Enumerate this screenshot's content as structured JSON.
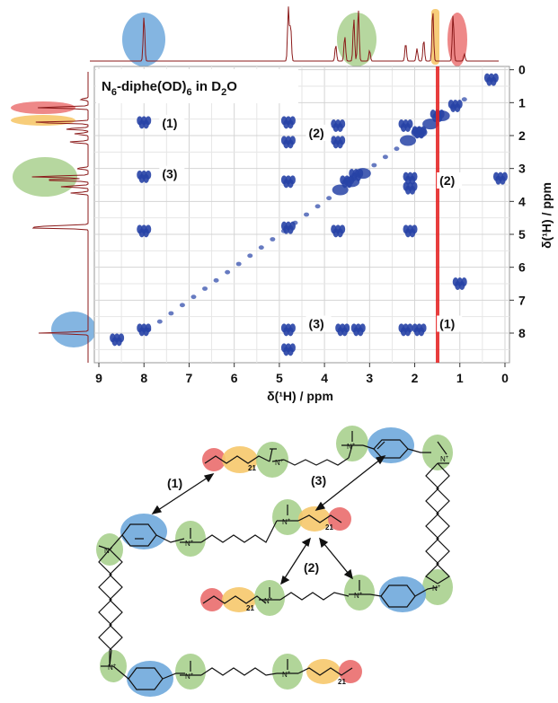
{
  "figure": {
    "title_main": "N",
    "title_sub1": "6",
    "title_mid": "-diphe(OD)",
    "title_sub2": "6",
    "title_in": " in D",
    "title_sub3": "2",
    "title_end": "O"
  },
  "chart_data": {
    "type": "2D-NMR",
    "x_ticks": [
      "9",
      "8",
      "7",
      "6",
      "5",
      "4",
      "3",
      "2",
      "1",
      "0"
    ],
    "y_ticks": [
      "0",
      "1",
      "2",
      "3",
      "4",
      "5",
      "6",
      "7",
      "8"
    ],
    "xlabel": "δ(¹H)  / ppm",
    "ylabel": "δ(¹H)  / ppm",
    "xlim": [
      9.1,
      -0.1
    ],
    "ylim": [
      -0.1,
      8.9
    ],
    "peak_labels": [
      {
        "text": "(1)",
        "x": 7.6,
        "y": 1.75
      },
      {
        "text": "(2)",
        "x": 4.35,
        "y": 2.05
      },
      {
        "text": "(3)",
        "x": 7.6,
        "y": 3.3
      },
      {
        "text": "(2)",
        "x": 1.45,
        "y": 3.5
      },
      {
        "text": "(3)",
        "x": 4.35,
        "y": 7.85
      },
      {
        "text": "(1)",
        "x": 1.45,
        "y": 7.85
      }
    ],
    "highlights": [
      {
        "x": 8.0,
        "color": "#6fa8dc"
      },
      {
        "x": 3.3,
        "color": "#a9d08e"
      },
      {
        "x": 1.6,
        "color": "#f6c86b"
      },
      {
        "x": 1.1,
        "color": "#ec7b7b"
      }
    ],
    "cross_peaks": [
      {
        "x": 8.0,
        "y": 1.6
      },
      {
        "x": 8.0,
        "y": 3.25
      },
      {
        "x": 8.0,
        "y": 4.9
      },
      {
        "x": 8.0,
        "y": 7.9
      },
      {
        "x": 4.8,
        "y": 1.6
      },
      {
        "x": 4.8,
        "y": 2.2
      },
      {
        "x": 4.8,
        "y": 3.4
      },
      {
        "x": 4.8,
        "y": 4.8
      },
      {
        "x": 4.8,
        "y": 7.9
      },
      {
        "x": 3.7,
        "y": 1.7
      },
      {
        "x": 3.7,
        "y": 2.2
      },
      {
        "x": 3.5,
        "y": 3.4
      },
      {
        "x": 3.3,
        "y": 3.2
      },
      {
        "x": 3.7,
        "y": 4.9
      },
      {
        "x": 3.6,
        "y": 7.9
      },
      {
        "x": 3.25,
        "y": 7.9
      },
      {
        "x": 2.2,
        "y": 1.7
      },
      {
        "x": 1.9,
        "y": 1.9
      },
      {
        "x": 2.1,
        "y": 3.3
      },
      {
        "x": 2.1,
        "y": 3.6
      },
      {
        "x": 2.1,
        "y": 4.9
      },
      {
        "x": 2.2,
        "y": 7.9
      },
      {
        "x": 1.9,
        "y": 7.9
      },
      {
        "x": 1.1,
        "y": 1.1
      },
      {
        "x": 1.5,
        "y": 1.4
      },
      {
        "x": 0.3,
        "y": 0.3
      },
      {
        "x": 8.6,
        "y": 8.2
      },
      {
        "x": 0.1,
        "y": 3.3
      },
      {
        "x": 1.0,
        "y": 6.5
      },
      {
        "x": 4.8,
        "y": 8.5
      }
    ]
  },
  "scheme": {
    "labels": [
      "(1)",
      "(2)",
      "(3)"
    ],
    "subscripts": [
      "21",
      "21",
      "21",
      "21"
    ]
  }
}
